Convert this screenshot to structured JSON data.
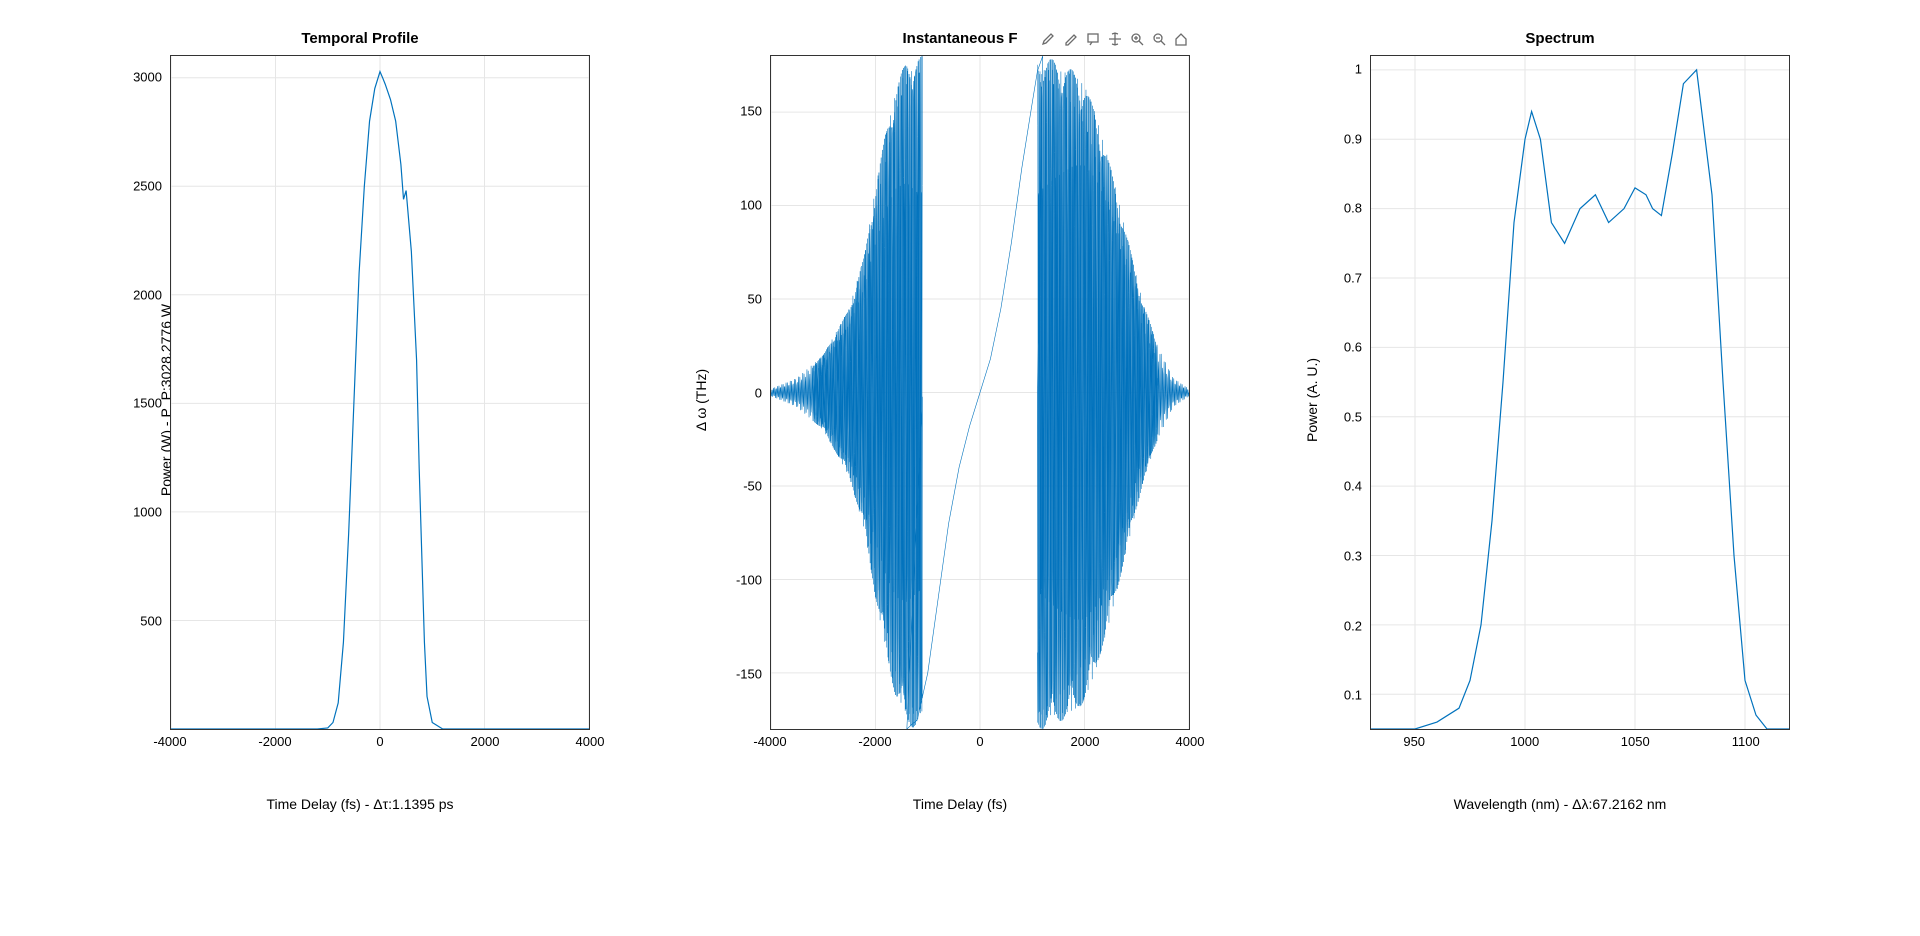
{
  "layout": {
    "figure_width": 1920,
    "figure_height": 936,
    "subplots": 3,
    "background_color": "#ffffff"
  },
  "colors": {
    "line": "#0072bd",
    "grid": "#e6e6e6",
    "axis_border": "#262626",
    "text": "#000000",
    "toolbar_icon": "#6b6b6b"
  },
  "typography": {
    "title_fontsize": 15,
    "title_fontweight": "bold",
    "label_fontsize": 14,
    "tick_fontsize": 13,
    "font_family": "Arial, Helvetica, sans-serif"
  },
  "plot1": {
    "type": "line",
    "title": "Temporal Profile",
    "xlabel": "Time Delay (fs) - Δτ:1.1395 ps",
    "ylabel": "Power (W) - P_P:3028.2776 W",
    "xlim": [
      -4000,
      4000
    ],
    "ylim": [
      0,
      3100
    ],
    "xticks": [
      -4000,
      -2000,
      0,
      2000,
      4000
    ],
    "yticks": [
      500,
      1000,
      1500,
      2000,
      2500,
      3000
    ],
    "line_color": "#0072bd",
    "line_width": 1.2,
    "grid": true,
    "data": {
      "x": [
        -4000,
        -1200,
        -1000,
        -900,
        -800,
        -700,
        -600,
        -500,
        -400,
        -300,
        -200,
        -100,
        0,
        50,
        100,
        200,
        300,
        350,
        400,
        450,
        500,
        600,
        700,
        750,
        800,
        850,
        900,
        1000,
        1200,
        4000
      ],
      "y": [
        0,
        0,
        5,
        30,
        120,
        400,
        900,
        1500,
        2100,
        2500,
        2800,
        2950,
        3028,
        3000,
        2970,
        2900,
        2800,
        2700,
        2600,
        2440,
        2480,
        2200,
        1700,
        1200,
        800,
        400,
        150,
        30,
        0,
        0
      ]
    }
  },
  "plot2": {
    "type": "line-dense",
    "title": "Instantaneous F",
    "xlabel": "Time Delay (fs)",
    "ylabel": "Δ ω (THz)",
    "xlim": [
      -4000,
      4000
    ],
    "ylim": [
      -180,
      180
    ],
    "xticks": [
      -4000,
      -2000,
      0,
      2000,
      4000
    ],
    "yticks": [
      -150,
      -100,
      -50,
      0,
      50,
      100,
      150
    ],
    "line_color": "#0072bd",
    "line_width": 0.6,
    "grid": true,
    "envelope_description": "dense oscillation with two lobes of increasing amplitude toward x=-1200 and x=1800, near-zero at edges, plus a smooth chirp curve from (-1200,-180) to (1200,180)",
    "chirp_curve": {
      "x": [
        -1400,
        -1200,
        -1000,
        -800,
        -600,
        -400,
        -200,
        0,
        200,
        400,
        600,
        800,
        1000,
        1100,
        1200
      ],
      "y": [
        -180,
        -175,
        -150,
        -110,
        -70,
        -40,
        -18,
        0,
        18,
        45,
        80,
        120,
        155,
        172,
        180
      ]
    },
    "envelope": {
      "x": [
        -4000,
        -3500,
        -3000,
        -2500,
        -2200,
        -2000,
        -1800,
        -1600,
        -1400,
        -1200,
        -1100,
        1100,
        1200,
        1400,
        1600,
        1800,
        2000,
        2200,
        2500,
        2800,
        3100,
        3400,
        3700,
        4000
      ],
      "yabs": [
        2,
        8,
        20,
        45,
        75,
        110,
        140,
        165,
        178,
        180,
        180,
        180,
        180,
        178,
        175,
        172,
        165,
        150,
        120,
        85,
        50,
        25,
        8,
        2
      ]
    }
  },
  "plot3": {
    "type": "line",
    "title": "Spectrum",
    "xlabel": "Wavelength (nm) - Δλ:67.2162 nm",
    "ylabel": "Power (A. U.)",
    "xlim": [
      930,
      1120
    ],
    "ylim": [
      0.05,
      1.02
    ],
    "xticks": [
      950,
      1000,
      1050,
      1100
    ],
    "yticks": [
      0.1,
      0.2,
      0.3,
      0.4,
      0.5,
      0.6,
      0.7,
      0.8,
      0.9,
      1
    ],
    "line_color": "#0072bd",
    "line_width": 1.2,
    "grid": true,
    "data": {
      "x": [
        930,
        950,
        960,
        970,
        975,
        980,
        985,
        990,
        995,
        1000,
        1003,
        1007,
        1012,
        1018,
        1025,
        1032,
        1038,
        1045,
        1050,
        1055,
        1058,
        1062,
        1067,
        1072,
        1078,
        1085,
        1090,
        1095,
        1100,
        1105,
        1110,
        1120
      ],
      "y": [
        0.05,
        0.05,
        0.06,
        0.08,
        0.12,
        0.2,
        0.35,
        0.55,
        0.78,
        0.9,
        0.94,
        0.9,
        0.78,
        0.75,
        0.8,
        0.82,
        0.78,
        0.8,
        0.83,
        0.82,
        0.8,
        0.79,
        0.88,
        0.98,
        1.0,
        0.82,
        0.55,
        0.3,
        0.12,
        0.07,
        0.05,
        0.05
      ]
    }
  },
  "toolbar": {
    "position": "top-right of subplot 2",
    "icons": [
      "brush-icon",
      "edit-icon",
      "datatip-icon",
      "pan-icon",
      "zoom-in-icon",
      "zoom-out-icon",
      "home-icon"
    ]
  }
}
